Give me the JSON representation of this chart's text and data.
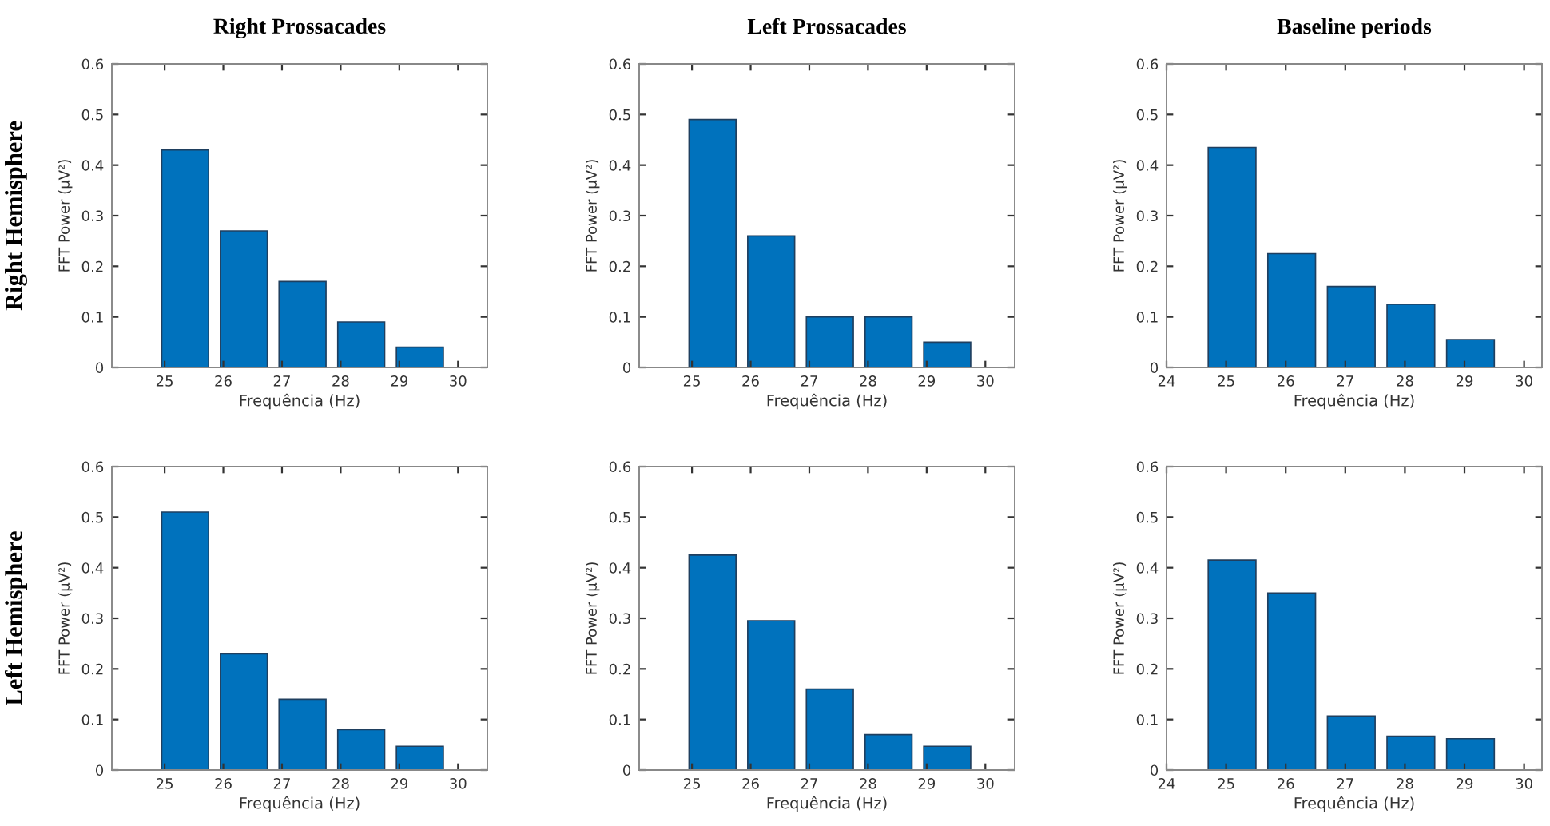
{
  "chart_data": [
    {
      "type": "bar",
      "title": "Right Prossacades",
      "annotations": [
        "Right Hemisphere"
      ],
      "xlabel": "Frequência (Hz)",
      "ylabel": "FFT Power (μV²)",
      "x": [
        25.35,
        26.35,
        27.35,
        28.35,
        29.35
      ],
      "values": [
        0.43,
        0.27,
        0.17,
        0.09,
        0.04
      ],
      "color": "#0072bd",
      "xlim": [
        24.1,
        30.5
      ],
      "xticks": [
        25,
        26,
        27,
        28,
        29,
        30
      ],
      "ylim": [
        0,
        0.6
      ],
      "yticks": [
        0,
        0.1,
        0.2,
        0.3,
        0.4,
        0.5,
        0.6
      ],
      "grid": false
    },
    {
      "type": "bar",
      "title": "Left Prossacades",
      "xlabel": "Frequência (Hz)",
      "ylabel": "FFT Power (μV²)",
      "x": [
        25.35,
        26.35,
        27.35,
        28.35,
        29.35
      ],
      "values": [
        0.49,
        0.26,
        0.1,
        0.1,
        0.05
      ],
      "color": "#0072bd",
      "xlim": [
        24.1,
        30.5
      ],
      "xticks": [
        25,
        26,
        27,
        28,
        29,
        30
      ],
      "ylim": [
        0,
        0.6
      ],
      "yticks": [
        0,
        0.1,
        0.2,
        0.3,
        0.4,
        0.5,
        0.6
      ],
      "grid": false
    },
    {
      "type": "bar",
      "title": "Baseline periods",
      "xlabel": "Frequência (Hz)",
      "ylabel": "FFT Power (μV²)",
      "x": [
        25.1,
        26.1,
        27.1,
        28.1,
        29.1
      ],
      "values": [
        0.435,
        0.225,
        0.16,
        0.125,
        0.055
      ],
      "color": "#0072bd",
      "xlim": [
        24,
        30.3
      ],
      "xticks": [
        24,
        25,
        26,
        27,
        28,
        29,
        30
      ],
      "ylim": [
        0,
        0.6
      ],
      "yticks": [
        0,
        0.1,
        0.2,
        0.3,
        0.4,
        0.5,
        0.6
      ],
      "grid": false
    },
    {
      "type": "bar",
      "annotations": [
        "Left Hemisphere"
      ],
      "xlabel": "Frequência (Hz)",
      "ylabel": "FFT Power (μV²)",
      "x": [
        25.35,
        26.35,
        27.35,
        28.35,
        29.35
      ],
      "values": [
        0.51,
        0.23,
        0.14,
        0.08,
        0.047
      ],
      "color": "#0072bd",
      "xlim": [
        24.1,
        30.5
      ],
      "xticks": [
        25,
        26,
        27,
        28,
        29,
        30
      ],
      "ylim": [
        0,
        0.6
      ],
      "yticks": [
        0,
        0.1,
        0.2,
        0.3,
        0.4,
        0.5,
        0.6
      ],
      "grid": false
    },
    {
      "type": "bar",
      "xlabel": "Frequência (Hz)",
      "ylabel": "FFT Power (μV²)",
      "x": [
        25.35,
        26.35,
        27.35,
        28.35,
        29.35
      ],
      "values": [
        0.425,
        0.295,
        0.16,
        0.07,
        0.047
      ],
      "color": "#0072bd",
      "xlim": [
        24.1,
        30.5
      ],
      "xticks": [
        25,
        26,
        27,
        28,
        29,
        30
      ],
      "ylim": [
        0,
        0.6
      ],
      "yticks": [
        0,
        0.1,
        0.2,
        0.3,
        0.4,
        0.5,
        0.6
      ],
      "grid": false
    },
    {
      "type": "bar",
      "xlabel": "Frequência (Hz)",
      "ylabel": "FFT Power (μV²)",
      "x": [
        25.1,
        26.1,
        27.1,
        28.1,
        29.1
      ],
      "values": [
        0.415,
        0.35,
        0.107,
        0.067,
        0.062
      ],
      "color": "#0072bd",
      "xlim": [
        24,
        30.3
      ],
      "xticks": [
        24,
        25,
        26,
        27,
        28,
        29,
        30
      ],
      "ylim": [
        0,
        0.6
      ],
      "yticks": [
        0,
        0.1,
        0.2,
        0.3,
        0.4,
        0.5,
        0.6
      ],
      "grid": false
    }
  ]
}
